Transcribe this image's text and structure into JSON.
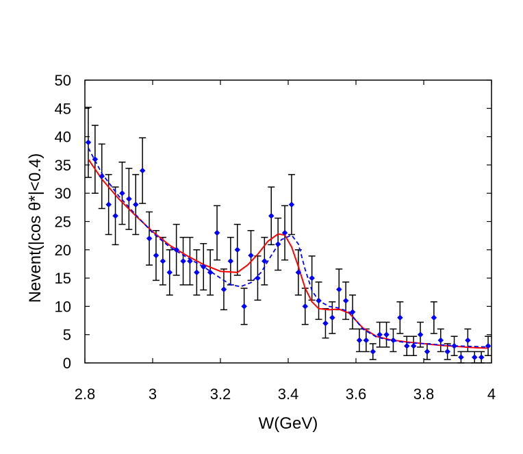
{
  "chart_data": {
    "type": "scatter",
    "title": "",
    "xlabel": "W(GeV)",
    "ylabel": "Nevent(|cos θ*|<0.4)",
    "xlim": [
      2.8,
      4.0
    ],
    "ylim": [
      0,
      50
    ],
    "xticks": [
      2.8,
      3.0,
      3.2,
      3.4,
      3.6,
      3.8,
      4.0
    ],
    "xtick_labels": [
      "2.8",
      "3",
      "3.2",
      "3.4",
      "3.6",
      "3.8",
      "4"
    ],
    "yticks": [
      0,
      5,
      10,
      15,
      20,
      25,
      30,
      35,
      40,
      45,
      50
    ],
    "ytick_labels": [
      "0",
      "5",
      "10",
      "15",
      "20",
      "25",
      "30",
      "35",
      "40",
      "45",
      "50"
    ],
    "grid": false,
    "legend": "none",
    "series": [
      {
        "name": "data",
        "kind": "points_with_errorbars",
        "color": "#0000ff",
        "x": [
          2.81,
          2.83,
          2.85,
          2.87,
          2.89,
          2.91,
          2.93,
          2.95,
          2.97,
          2.99,
          3.01,
          3.03,
          3.05,
          3.07,
          3.09,
          3.11,
          3.13,
          3.15,
          3.17,
          3.19,
          3.21,
          3.23,
          3.25,
          3.27,
          3.29,
          3.31,
          3.33,
          3.35,
          3.37,
          3.39,
          3.41,
          3.43,
          3.45,
          3.47,
          3.49,
          3.51,
          3.53,
          3.55,
          3.57,
          3.59,
          3.61,
          3.63,
          3.65,
          3.67,
          3.69,
          3.71,
          3.73,
          3.75,
          3.77,
          3.79,
          3.81,
          3.83,
          3.85,
          3.87,
          3.89,
          3.91,
          3.93,
          3.95,
          3.97,
          3.99
        ],
        "y": [
          39,
          36,
          33,
          28,
          26,
          30,
          29,
          28,
          34,
          22,
          19,
          18,
          16,
          20,
          18,
          18,
          16,
          17,
          16,
          23,
          13,
          18,
          20,
          10,
          19,
          15,
          18,
          26,
          21,
          23,
          28,
          16,
          10,
          15,
          11,
          7,
          8,
          13,
          11,
          9,
          4,
          4,
          2,
          5,
          5,
          4,
          8,
          3,
          3,
          5,
          2,
          8,
          4,
          2,
          3,
          1,
          4,
          1,
          1,
          3
        ],
        "yerr": [
          6.2,
          6.0,
          5.7,
          5.3,
          5.1,
          5.5,
          5.4,
          5.3,
          5.8,
          4.7,
          4.4,
          4.2,
          4.0,
          4.5,
          4.2,
          4.2,
          4.0,
          4.1,
          4.0,
          4.8,
          3.6,
          4.2,
          4.5,
          3.2,
          4.4,
          3.9,
          4.2,
          5.1,
          4.6,
          4.8,
          5.3,
          4.0,
          3.2,
          3.9,
          3.3,
          2.6,
          2.8,
          3.6,
          3.3,
          3.0,
          2.0,
          2.0,
          1.4,
          2.2,
          2.2,
          2.0,
          2.8,
          1.7,
          1.7,
          2.2,
          1.4,
          2.8,
          2.0,
          1.4,
          1.7,
          1.0,
          2.0,
          1.0,
          1.0,
          1.7
        ]
      },
      {
        "name": "fit-solid",
        "kind": "line",
        "style": "solid",
        "color": "#ff0000",
        "x": [
          2.81,
          2.85,
          2.9,
          2.95,
          3.0,
          3.05,
          3.1,
          3.15,
          3.2,
          3.25,
          3.28,
          3.31,
          3.34,
          3.37,
          3.39,
          3.41,
          3.43,
          3.45,
          3.47,
          3.49,
          3.52,
          3.55,
          3.58,
          3.62,
          3.66,
          3.7,
          3.75,
          3.8,
          3.85,
          3.9,
          3.95,
          3.99
        ],
        "y": [
          36.0,
          32.5,
          29.0,
          26.0,
          23.2,
          20.8,
          19.0,
          17.4,
          16.2,
          16.0,
          17.3,
          19.2,
          21.5,
          22.8,
          22.6,
          20.5,
          17.0,
          13.2,
          10.8,
          9.6,
          9.4,
          9.5,
          8.8,
          6.2,
          4.7,
          4.1,
          3.7,
          3.4,
          3.1,
          2.9,
          2.7,
          2.6
        ]
      },
      {
        "name": "fit-dashed",
        "kind": "line",
        "style": "dashed",
        "color": "#0000ff",
        "x": [
          2.81,
          2.85,
          2.9,
          2.95,
          3.0,
          3.05,
          3.1,
          3.15,
          3.2,
          3.23,
          3.26,
          3.29,
          3.32,
          3.35,
          3.38,
          3.41,
          3.43,
          3.45,
          3.47,
          3.49,
          3.52,
          3.55,
          3.58,
          3.62,
          3.66,
          3.7,
          3.75,
          3.8,
          3.85,
          3.9,
          3.95,
          3.99
        ],
        "y": [
          38.0,
          33.5,
          29.5,
          26.2,
          23.0,
          20.5,
          18.7,
          17.0,
          15.0,
          13.8,
          13.5,
          14.2,
          16.0,
          19.0,
          21.8,
          22.6,
          21.0,
          16.5,
          12.8,
          11.0,
          10.0,
          9.7,
          9.0,
          6.0,
          4.6,
          4.0,
          3.6,
          3.4,
          3.2,
          3.0,
          2.9,
          2.8
        ]
      }
    ]
  }
}
